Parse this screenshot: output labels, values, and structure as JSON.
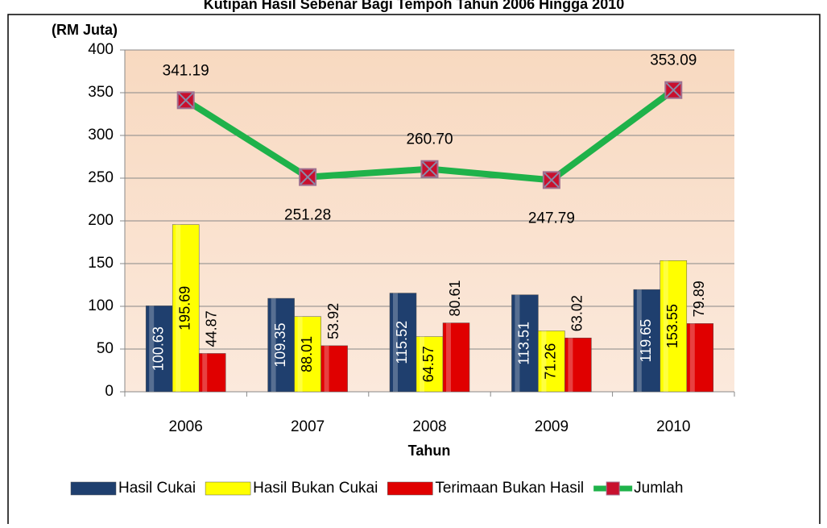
{
  "chart_data": {
    "type": "bar",
    "title": "Kutipan Hasil Sebenar Bagi Tempoh Tahun 2006 Hingga 2010",
    "y_label": "(RM Juta)",
    "x_label": "Tahun",
    "categories": [
      "2006",
      "2007",
      "2008",
      "2009",
      "2010"
    ],
    "series": [
      {
        "name": "Hasil Cukai",
        "color": "#1f3f6e",
        "values": [
          100.63,
          109.35,
          115.52,
          113.51,
          119.65
        ]
      },
      {
        "name": "Hasil Bukan Cukai",
        "color": "#ffff00",
        "values": [
          195.69,
          88.01,
          64.57,
          71.26,
          153.55
        ]
      },
      {
        "name": "Terimaan Bukan Hasil",
        "color": "#e00000",
        "values": [
          44.87,
          53.92,
          80.61,
          63.02,
          79.89
        ]
      },
      {
        "name": "Jumlah",
        "type": "line",
        "color": "#1fb24a",
        "values": [
          341.19,
          251.28,
          260.7,
          247.79,
          353.09
        ],
        "value_labels": [
          "341.19",
          "251.28",
          "260.70",
          "247.79",
          "353.09"
        ]
      }
    ],
    "ylim": [
      0,
      400
    ],
    "yticks": [
      0,
      50,
      100,
      150,
      200,
      250,
      300,
      350,
      400
    ],
    "grid": true,
    "legend": "bottom"
  }
}
